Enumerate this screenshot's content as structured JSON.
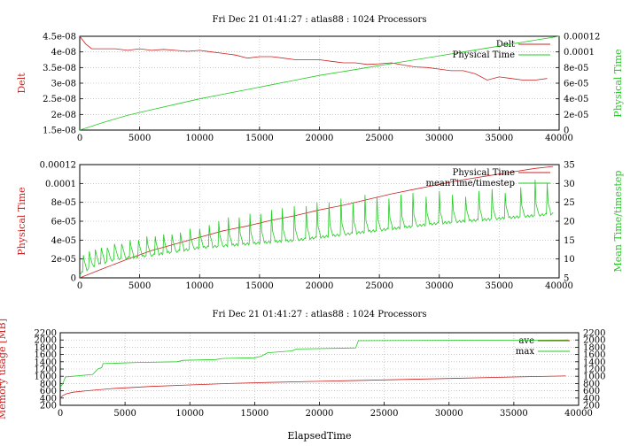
{
  "colors": {
    "red": "#cc2222",
    "green": "#22cc22",
    "grid": "#aaaaaa",
    "axis": "#000000"
  },
  "chart_data": [
    {
      "type": "line",
      "title": "Fri Dec 21 01:41:27 : atlas88 :  1024 Processors",
      "xlabel": "",
      "ylabel": "Delt",
      "y2label": "Physical Time",
      "xlim": [
        0,
        40000
      ],
      "ylim": [
        1.5e-08,
        4.5e-08
      ],
      "y2lim": [
        0,
        0.00012
      ],
      "xticks": [
        "0",
        "5000",
        "10000",
        "15000",
        "20000",
        "25000",
        "30000",
        "35000",
        "40000"
      ],
      "yticks": [
        "1.5e-08",
        "2e-08",
        "2.5e-08",
        "3e-08",
        "3.5e-08",
        "4e-08",
        "4.5e-08"
      ],
      "y2ticks": [
        "0",
        "2e-05",
        "4e-05",
        "6e-05",
        "8e-05",
        "0.0001",
        "0.00012"
      ],
      "grid": true,
      "legend": "top-right",
      "series": [
        {
          "name": "Delt",
          "axis": "y",
          "color": "#cc2222",
          "x": [
            0,
            500,
            1000,
            2000,
            3000,
            4000,
            5000,
            6000,
            7000,
            8000,
            9000,
            10000,
            11000,
            12000,
            13000,
            14000,
            15000,
            16000,
            17000,
            18000,
            19000,
            20000,
            21000,
            22000,
            23000,
            24000,
            25000,
            26000,
            27000,
            28000,
            29000,
            30000,
            31000,
            32000,
            33000,
            34000,
            35000,
            36000,
            37000,
            38000,
            39000
          ],
          "y": [
            4.5e-08,
            4.25e-08,
            4.1e-08,
            4.1e-08,
            4.1e-08,
            4.05e-08,
            4.1e-08,
            4.05e-08,
            4.08e-08,
            4.05e-08,
            4.02e-08,
            4.05e-08,
            4e-08,
            3.95e-08,
            3.9e-08,
            3.8e-08,
            3.85e-08,
            3.85e-08,
            3.8e-08,
            3.75e-08,
            3.75e-08,
            3.75e-08,
            3.7e-08,
            3.65e-08,
            3.65e-08,
            3.6e-08,
            3.62e-08,
            3.65e-08,
            3.58e-08,
            3.52e-08,
            3.5e-08,
            3.45e-08,
            3.4e-08,
            3.4e-08,
            3.3e-08,
            3.1e-08,
            3.2e-08,
            3.15e-08,
            3.1e-08,
            3.1e-08,
            3.15e-08
          ]
        },
        {
          "name": "Physical Time",
          "axis": "y2",
          "color": "#22cc22",
          "x": [
            0,
            2000,
            4000,
            6000,
            8000,
            10000,
            12000,
            14000,
            16000,
            18000,
            20000,
            22000,
            24000,
            26000,
            28000,
            30000,
            32000,
            34000,
            36000,
            38000,
            40000
          ],
          "y": [
            0,
            1e-05,
            1.9e-05,
            2.6e-05,
            3.3e-05,
            4e-05,
            4.6e-05,
            5.2e-05,
            5.8e-05,
            6.4e-05,
            7e-05,
            7.5e-05,
            8e-05,
            8.5e-05,
            9e-05,
            9.5e-05,
            0.0001,
            0.000105,
            0.00011,
            0.000115,
            0.00012
          ]
        }
      ]
    },
    {
      "type": "line",
      "title": "",
      "xlabel": "",
      "ylabel": "Physical Time",
      "y2label": "Mean Time/timestep",
      "xlim": [
        0,
        40000
      ],
      "ylim": [
        0,
        0.00012
      ],
      "y2lim": [
        5,
        35
      ],
      "xticks": [
        "0",
        "5000",
        "10000",
        "15000",
        "20000",
        "25000",
        "30000",
        "35000",
        "40000"
      ],
      "yticks": [
        "0",
        "2e-05",
        "4e-05",
        "6e-05",
        "8e-05",
        "0.0001",
        "0.00012"
      ],
      "y2ticks": [
        "5",
        "10",
        "15",
        "20",
        "25",
        "30",
        "35"
      ],
      "grid": true,
      "legend": "top-right",
      "series": [
        {
          "name": "Physical Time",
          "axis": "y",
          "color": "#cc2222",
          "x": [
            0,
            2000,
            4000,
            6000,
            8000,
            10000,
            12000,
            14000,
            16000,
            18000,
            20000,
            22000,
            24000,
            26000,
            28000,
            30000,
            32000,
            34000,
            36000,
            38000,
            39500
          ],
          "y": [
            0,
            1e-05,
            2e-05,
            2.9e-05,
            3.6e-05,
            4.3e-05,
            5e-05,
            5.5e-05,
            6.1e-05,
            6.6e-05,
            7.2e-05,
            7.7e-05,
            8.3e-05,
            8.9e-05,
            9.4e-05,
            9.9e-05,
            0.000104,
            0.000108,
            0.000112,
            0.000116,
            0.000118
          ]
        },
        {
          "name": "meanTime/timestep",
          "axis": "y2",
          "color": "#22cc22",
          "baseline_x": [
            0,
            1000,
            3000,
            6000,
            10000,
            14000,
            18000,
            22000,
            26000,
            30000,
            34000,
            38000,
            39500
          ],
          "baseline_y": [
            6,
            8,
            10,
            11,
            13,
            14,
            15,
            16.5,
            18,
            19.5,
            20.5,
            21.5,
            22
          ],
          "spikes_x": [
            300,
            800,
            1300,
            1800,
            2300,
            2900,
            3500,
            4200,
            4900,
            5600,
            6300,
            7000,
            7700,
            8400,
            9200,
            10000,
            10800,
            11600,
            12400,
            13300,
            14200,
            15100,
            16000,
            16900,
            17900,
            18900,
            19800,
            20800,
            21800,
            22800,
            23800,
            24800,
            25800,
            26800,
            27800,
            28900,
            30000,
            31100,
            32200,
            33300,
            34400,
            35500,
            36800,
            38000,
            39000
          ],
          "spikes_y": [
            11,
            12,
            12.5,
            13,
            13,
            14,
            14,
            15,
            15,
            16,
            16,
            16.5,
            16.5,
            17,
            18,
            18,
            19,
            20,
            21,
            21,
            22,
            22,
            23,
            23.5,
            24,
            24,
            25,
            25,
            26,
            25,
            27,
            26.5,
            26,
            27,
            27.5,
            26.5,
            28,
            27,
            26.5,
            28,
            28.5,
            27.5,
            29,
            31,
            30
          ]
        }
      ]
    },
    {
      "type": "line",
      "title": "Fri Dec 21 01:41:27 : atlas88 :  1024 Processors",
      "xlabel": "ElapsedTime",
      "ylabel": "Memory usage [MB]",
      "y2label": "",
      "xlim": [
        0,
        40000
      ],
      "ylim": [
        200,
        2200
      ],
      "y2lim": [
        200,
        2200
      ],
      "xticks": [
        "0",
        "5000",
        "10000",
        "15000",
        "20000",
        "25000",
        "30000",
        "35000",
        "40000"
      ],
      "yticks": [
        "200",
        "400",
        "600",
        "800",
        "1000",
        "1200",
        "1400",
        "1600",
        "1800",
        "2000",
        "2200"
      ],
      "y2ticks": [
        "200",
        "400",
        "600",
        "800",
        "1000",
        "1200",
        "1400",
        "1600",
        "1800",
        "2000",
        "2200"
      ],
      "grid": true,
      "legend": "top-right",
      "series": [
        {
          "name": "ave",
          "axis": "y",
          "color": "#cc2222",
          "x": [
            0,
            200,
            500,
            1000,
            2000,
            3000,
            4000,
            5000,
            7000,
            10000,
            13000,
            16000,
            20000,
            25000,
            30000,
            35000,
            39000
          ],
          "y": [
            400,
            470,
            520,
            560,
            600,
            630,
            660,
            680,
            720,
            760,
            800,
            830,
            860,
            900,
            940,
            980,
            1010
          ]
        },
        {
          "name": "max",
          "axis": "y",
          "color": "#22cc22",
          "x": [
            0,
            200,
            400,
            1000,
            2500,
            2900,
            3200,
            3300,
            6000,
            9000,
            9500,
            12000,
            12500,
            15000,
            15500,
            16000,
            17900,
            18200,
            22800,
            23000,
            39200
          ],
          "y": [
            700,
            800,
            980,
            1000,
            1050,
            1200,
            1240,
            1350,
            1380,
            1400,
            1440,
            1460,
            1490,
            1510,
            1550,
            1650,
            1700,
            1750,
            1780,
            1980,
            2000
          ]
        }
      ]
    }
  ]
}
